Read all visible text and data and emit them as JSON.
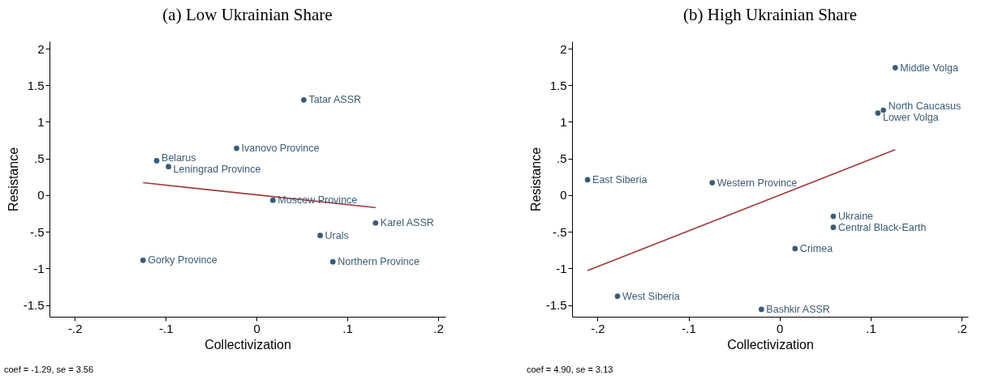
{
  "chart_data": [
    {
      "type": "scatter",
      "title": "(a) Low Ukrainian Share",
      "xlabel": "Collectivization",
      "ylabel": "Resistance",
      "xlim": [
        -0.228,
        0.208
      ],
      "ylim": [
        -1.66,
        2.1
      ],
      "xticks": [
        {
          "value": -0.2,
          "label": "-.2"
        },
        {
          "value": -0.1,
          "label": "-.1"
        },
        0,
        {
          "value": 0.1,
          "label": ".1"
        },
        {
          "value": 0.2,
          "label": ".2"
        }
      ],
      "yticks": [
        {
          "value": -1.5,
          "label": "-1.5"
        },
        -1,
        {
          "value": -0.5,
          "label": "-.5"
        },
        0,
        {
          "value": 0.5,
          "label": ".5"
        },
        1,
        1.5,
        2
      ],
      "grid": false,
      "series": [
        {
          "type": "scatter",
          "marker": "circle",
          "color": "#3b5b75",
          "x": [
            0.052,
            -0.022,
            -0.11,
            -0.097,
            0.018,
            0.131,
            0.07,
            -0.125,
            0.084
          ],
          "values": [
            1.3,
            0.64,
            0.47,
            0.39,
            -0.07,
            -0.38,
            -0.55,
            -0.89,
            -0.91
          ]
        },
        {
          "type": "line",
          "color": "#a0393b",
          "x": [
            -0.125,
            0.131
          ],
          "values": [
            0.17,
            -0.17
          ]
        }
      ],
      "annotations": [
        {
          "text": "Tatar ASSR",
          "x": 0.052,
          "y": 1.3
        },
        {
          "text": "Ivanovo Province",
          "x": -0.022,
          "y": 0.64
        },
        {
          "text": "Belarus",
          "x": -0.11,
          "y": 0.47
        },
        {
          "text": "Leningrad Province",
          "x": -0.097,
          "y": 0.39
        },
        {
          "text": "Moscow Province",
          "x": 0.018,
          "y": -0.07
        },
        {
          "text": "Karel ASSR",
          "x": 0.131,
          "y": -0.38
        },
        {
          "text": "Urals",
          "x": 0.07,
          "y": -0.55
        },
        {
          "text": "Gorky Province",
          "x": -0.125,
          "y": -0.89
        },
        {
          "text": "Northern Province",
          "x": 0.084,
          "y": -0.91
        },
        "coef = -1.29, se =  3.56"
      ]
    },
    {
      "type": "scatter",
      "title": "(b) High Ukrainian Share",
      "xlabel": "Collectivization",
      "ylabel": "Resistance",
      "xlim": [
        -0.228,
        0.207
      ],
      "ylim": [
        -1.66,
        2.1
      ],
      "xticks": [
        {
          "value": -0.2,
          "label": "-.2"
        },
        {
          "value": -0.1,
          "label": "-.1"
        },
        0,
        {
          "value": 0.1,
          "label": ".1"
        },
        {
          "value": 0.2,
          "label": ".2"
        }
      ],
      "yticks": [
        {
          "value": -1.5,
          "label": "-1.5"
        },
        -1,
        {
          "value": -0.5,
          "label": "-.5"
        },
        0,
        {
          "value": 0.5,
          "label": ".5"
        },
        1,
        1.5,
        2
      ],
      "grid": false,
      "series": [
        {
          "type": "scatter",
          "marker": "circle",
          "color": "#3b5b75",
          "x": [
            0.127,
            0.114,
            0.108,
            -0.211,
            -0.074,
            0.059,
            0.059,
            0.017,
            -0.178,
            -0.02
          ],
          "values": [
            1.74,
            1.16,
            1.12,
            0.21,
            0.17,
            -0.29,
            -0.44,
            -0.73,
            -1.38,
            -1.56
          ]
        },
        {
          "type": "line",
          "color": "#a0393b",
          "x": [
            -0.211,
            0.127
          ],
          "values": [
            -1.03,
            0.62
          ]
        }
      ],
      "annotations": [
        {
          "text": "Middle Volga",
          "x": 0.127,
          "y": 1.74
        },
        {
          "text": "North Caucasus",
          "x": 0.114,
          "y": 1.16
        },
        {
          "text": "Lower Volga",
          "x": 0.108,
          "y": 1.12
        },
        {
          "text": "East Siberia",
          "x": -0.211,
          "y": 0.21
        },
        {
          "text": "Western Province",
          "x": -0.074,
          "y": 0.17
        },
        {
          "text": "Ukraine",
          "x": 0.059,
          "y": -0.29
        },
        {
          "text": "Central Black-Earth",
          "x": 0.059,
          "y": -0.44
        },
        {
          "text": "Crimea",
          "x": 0.017,
          "y": -0.73
        },
        {
          "text": "West Siberia",
          "x": -0.178,
          "y": -1.38
        },
        {
          "text": "Bashkir ASSR",
          "x": -0.02,
          "y": -1.56
        },
        "coef =  4.90, se =  3.13"
      ]
    }
  ]
}
